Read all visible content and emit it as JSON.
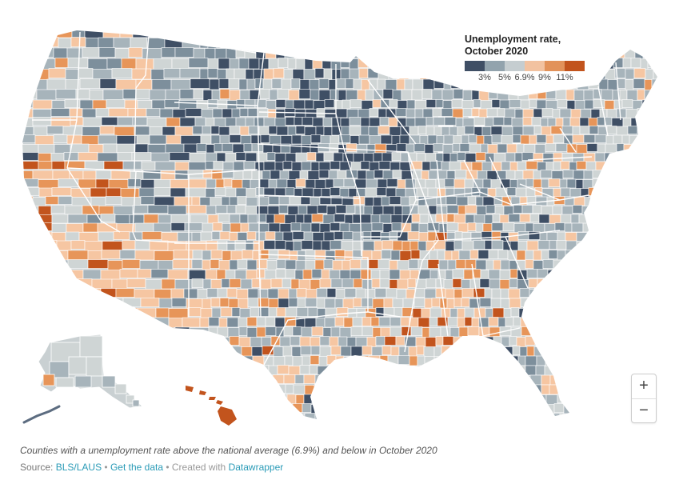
{
  "legend": {
    "title_line1": "Unemployment rate,",
    "title_line2": "October 2020",
    "swatch_colors": [
      "#3f4f65",
      "#92a3ad",
      "#c5cdd0",
      "#f2c2a0",
      "#e2925a",
      "#c2541d"
    ],
    "ticks": [
      {
        "label": "3%",
        "value": 3
      },
      {
        "label": "5%",
        "value": 5
      },
      {
        "label": "6.9%",
        "value": 6.9
      },
      {
        "label": "9%",
        "value": 9
      },
      {
        "label": "11%",
        "value": 11
      }
    ]
  },
  "palette": {
    "very_low": "#3f4f65",
    "low": "#7d8f9c",
    "below": "#a7b4bb",
    "near": "#cfd5d5",
    "above": "#f6c6a2",
    "high": "#e79559",
    "very_high": "#c2541d",
    "border": "#ffffff"
  },
  "zoom": {
    "in_label": "+",
    "out_label": "−"
  },
  "footer": {
    "caption": "Counties with a unemployment rate above the national average (6.9%) and below in October 2020",
    "source_prefix": "Source: ",
    "source_link": "BLS/LAUS",
    "separator1": " • ",
    "get_data": "Get the data",
    "separator2": " • Created with ",
    "datawrapper": "Datawrapper"
  }
}
